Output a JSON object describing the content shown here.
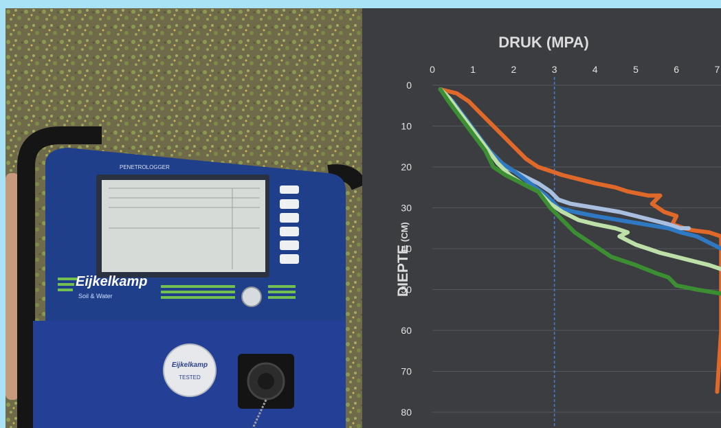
{
  "photo": {
    "device_label": "PENETROLOGGER",
    "brand_name": "Eijkelkamp",
    "brand_sub": "Soil & Water",
    "seal_brand": "Eijkelkamp",
    "seal_text": "TESTED"
  },
  "colors": {
    "background": "#a9e1f5",
    "panel": "#3b3d40",
    "grid": "#55585c",
    "threshold": "#4a7fd8"
  },
  "chart_data": {
    "type": "line",
    "title": "DRUK (MPA)",
    "xlabel": "DRUK (MPA)",
    "ylabel_main": "DIEPTE",
    "ylabel_unit": "(CM)",
    "x_ticks": [
      "0",
      "1",
      "2",
      "3",
      "4",
      "5",
      "6",
      "7"
    ],
    "y_ticks": [
      "0",
      "10",
      "20",
      "30",
      "40",
      "50",
      "60",
      "70",
      "80"
    ],
    "xlim": [
      0,
      7
    ],
    "ylim": [
      0,
      80
    ],
    "y_inverted": true,
    "grid": "horizontal",
    "threshold_line": {
      "x": 3,
      "style": "dashed",
      "color": "#4a7fd8"
    },
    "series": [
      {
        "color": "#e0692a",
        "points": [
          [
            0.2,
            1
          ],
          [
            0.6,
            2
          ],
          [
            0.9,
            4
          ],
          [
            1.2,
            7
          ],
          [
            1.5,
            10
          ],
          [
            1.8,
            13
          ],
          [
            2.0,
            15
          ],
          [
            2.3,
            18
          ],
          [
            2.6,
            20
          ],
          [
            2.9,
            21
          ],
          [
            3.2,
            22
          ],
          [
            3.6,
            23
          ],
          [
            4.0,
            24
          ],
          [
            4.5,
            25
          ],
          [
            4.8,
            26
          ],
          [
            5.3,
            27
          ],
          [
            5.6,
            27
          ],
          [
            5.4,
            29
          ],
          [
            5.7,
            31
          ],
          [
            6.0,
            32
          ],
          [
            5.9,
            34
          ],
          [
            6.2,
            35
          ],
          [
            6.4,
            35.5
          ],
          [
            6.8,
            36
          ],
          [
            7.1,
            37
          ],
          [
            7.1,
            60
          ],
          [
            7.0,
            75
          ]
        ]
      },
      {
        "color": "#a9bfdf",
        "points": [
          [
            0.2,
            1
          ],
          [
            0.5,
            4
          ],
          [
            0.8,
            8
          ],
          [
            1.1,
            12
          ],
          [
            1.4,
            16
          ],
          [
            1.8,
            20
          ],
          [
            2.2,
            22
          ],
          [
            2.6,
            24
          ],
          [
            2.9,
            26
          ],
          [
            3.1,
            28
          ],
          [
            3.4,
            29
          ],
          [
            4.0,
            30
          ],
          [
            4.6,
            31
          ],
          [
            5.0,
            32
          ],
          [
            5.4,
            33
          ],
          [
            5.8,
            34
          ],
          [
            6.1,
            35
          ],
          [
            6.3,
            35
          ]
        ]
      },
      {
        "color": "#2f79c3",
        "points": [
          [
            0.2,
            1
          ],
          [
            0.5,
            4
          ],
          [
            0.8,
            8
          ],
          [
            1.1,
            12
          ],
          [
            1.4,
            16
          ],
          [
            1.7,
            19
          ],
          [
            2.0,
            21
          ],
          [
            2.4,
            24
          ],
          [
            2.8,
            27
          ],
          [
            3.1,
            30
          ],
          [
            3.5,
            31
          ],
          [
            4.0,
            32
          ],
          [
            4.6,
            33
          ],
          [
            5.2,
            34
          ],
          [
            5.8,
            35
          ],
          [
            6.1,
            36
          ],
          [
            6.5,
            37
          ],
          [
            6.9,
            39
          ],
          [
            7.1,
            40
          ]
        ]
      },
      {
        "color": "#bde0a8",
        "points": [
          [
            0.2,
            1
          ],
          [
            0.4,
            3
          ],
          [
            0.7,
            7
          ],
          [
            1.0,
            11
          ],
          [
            1.3,
            15
          ],
          [
            1.6,
            19
          ],
          [
            1.9,
            22
          ],
          [
            2.2,
            24
          ],
          [
            2.6,
            26
          ],
          [
            2.9,
            29
          ],
          [
            3.2,
            31
          ],
          [
            3.6,
            33
          ],
          [
            4.0,
            34
          ],
          [
            4.5,
            35
          ],
          [
            4.8,
            36
          ],
          [
            4.6,
            37
          ],
          [
            5.0,
            39
          ],
          [
            5.3,
            40
          ],
          [
            5.6,
            41
          ],
          [
            6.0,
            42
          ],
          [
            6.4,
            43
          ],
          [
            6.8,
            44
          ],
          [
            7.1,
            45
          ]
        ]
      },
      {
        "color": "#3c8e33",
        "points": [
          [
            0.2,
            1
          ],
          [
            0.4,
            4
          ],
          [
            0.7,
            8
          ],
          [
            1.0,
            12
          ],
          [
            1.3,
            16
          ],
          [
            1.5,
            20
          ],
          [
            1.8,
            22
          ],
          [
            2.2,
            24
          ],
          [
            2.6,
            26
          ],
          [
            2.9,
            30
          ],
          [
            3.2,
            33
          ],
          [
            3.5,
            36
          ],
          [
            3.8,
            38
          ],
          [
            4.1,
            40
          ],
          [
            4.4,
            42
          ],
          [
            4.7,
            43
          ],
          [
            5.0,
            44
          ],
          [
            5.5,
            46
          ],
          [
            5.8,
            47
          ],
          [
            6.0,
            49
          ],
          [
            6.5,
            50
          ],
          [
            7.1,
            51
          ]
        ]
      }
    ]
  }
}
